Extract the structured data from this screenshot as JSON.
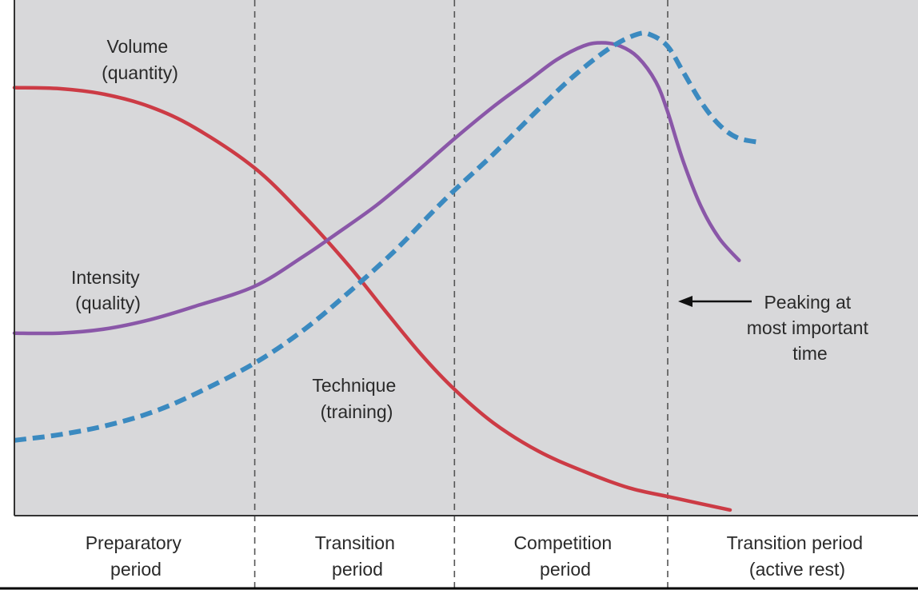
{
  "chart_data": {
    "type": "line",
    "title": "",
    "xlabel": "",
    "ylabel": "",
    "grid": false,
    "xlim": [
      0,
      100
    ],
    "ylim": [
      0,
      100
    ],
    "colors": {
      "plot_background": "#d8d8da",
      "volume": "#cc3b45",
      "intensity": "#8a57a8",
      "technique": "#3b8ac0",
      "divider": "#555555",
      "axis": "#333333",
      "text": "#2a2a2a"
    },
    "periods": [
      {
        "name": "preparatory",
        "lines": [
          "Preparatory",
          "period"
        ],
        "start": 0,
        "end": 26.6
      },
      {
        "name": "transition",
        "lines": [
          "Transition",
          "period"
        ],
        "start": 26.6,
        "end": 48.7
      },
      {
        "name": "competition",
        "lines": [
          "Competition",
          "period"
        ],
        "start": 48.7,
        "end": 72.3
      },
      {
        "name": "transition-rest",
        "lines": [
          "Transition period",
          "(active rest)"
        ],
        "start": 72.3,
        "end": 100
      }
    ],
    "series": [
      {
        "name": "Volume (quantity)",
        "key": "volume",
        "style": "solid",
        "x": [
          0,
          5,
          10,
          15,
          20,
          26.6,
          32,
          37,
          41,
          45,
          48.7,
          53,
          58,
          63,
          68,
          72.3,
          76,
          79.2
        ],
        "y": [
          83,
          82.8,
          81.7,
          79.3,
          75.2,
          67.4,
          58.2,
          48.5,
          39.8,
          31.3,
          24.5,
          18,
          12.5,
          8.6,
          5.4,
          3.7,
          2.3,
          1.1
        ],
        "label_lines": [
          "Volume",
          "(quantity)"
        ]
      },
      {
        "name": "Intensity (quality)",
        "key": "intensity",
        "style": "solid",
        "x": [
          0,
          5,
          10,
          15,
          20,
          26.6,
          32,
          36,
          40,
          44,
          48.7,
          53,
          57,
          60,
          63,
          65,
          67,
          69,
          71,
          72.3,
          74,
          76,
          78,
          80.2
        ],
        "y": [
          35.4,
          35.4,
          36.2,
          38,
          40.6,
          44.5,
          50.3,
          55.1,
          60.1,
          65.9,
          73.1,
          79.3,
          84.5,
          88.4,
          91.1,
          91.7,
          91.1,
          88.9,
          84.1,
          78.3,
          68.8,
          59.9,
          53.8,
          49.5
        ],
        "label_lines": [
          "Intensity",
          "(quality)"
        ]
      },
      {
        "name": "Technique (training)",
        "key": "technique",
        "style": "dashed",
        "x": [
          0,
          5,
          10,
          15,
          20,
          26.6,
          32,
          37,
          42,
          46,
          48.7,
          53,
          58,
          62,
          66,
          69,
          70.5,
          72.3,
          74,
          76,
          78,
          80,
          82.4
        ],
        "y": [
          14.6,
          15.7,
          17.4,
          19.9,
          23.6,
          29.6,
          36,
          43.3,
          51.2,
          58.4,
          63.1,
          70.1,
          78.8,
          85.4,
          90.8,
          93.4,
          93.2,
          91,
          86.1,
          80.2,
          75.8,
          73.3,
          72.4
        ],
        "label_lines": [
          "Technique",
          "(training)"
        ]
      }
    ],
    "annotations": [
      {
        "name": "peaking",
        "lines": [
          "Peaking at",
          "most important",
          "time"
        ],
        "points_to": 72.3
      }
    ]
  }
}
